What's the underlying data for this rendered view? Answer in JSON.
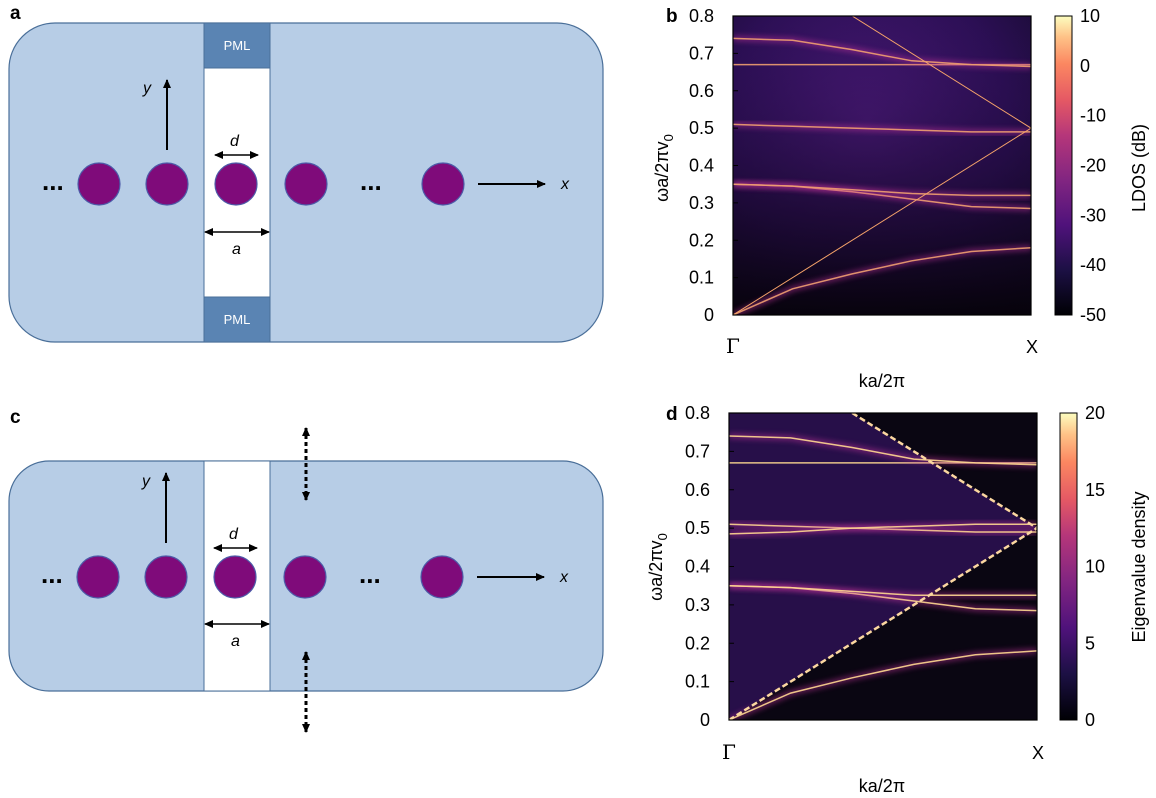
{
  "panels": {
    "a": {
      "letter": "a",
      "pml_top": "PML",
      "pml_bottom": "PML",
      "y_label": "y",
      "x_label": "x",
      "d_label": "d",
      "a_label": "a",
      "dots_left": "...",
      "dots_mid": "..."
    },
    "b": {
      "letter": "b",
      "ylabel": "ωa/2πv",
      "ylabel_sub": "0",
      "xlabel": "ka/2π",
      "xticks": [
        "Γ",
        "X"
      ],
      "yticks": [
        "0",
        "0.1",
        "0.2",
        "0.3",
        "0.4",
        "0.5",
        "0.6",
        "0.7",
        "0.8"
      ],
      "colorbar_label": "LDOS (dB)",
      "colorbar_ticks": [
        "10",
        "0",
        "-10",
        "-20",
        "-30",
        "-40",
        "-50"
      ]
    },
    "c": {
      "letter": "c",
      "y_label": "y",
      "x_label": "x",
      "d_label": "d",
      "a_label": "a",
      "dots_left": "...",
      "dots_mid": "..."
    },
    "d": {
      "letter": "d",
      "ylabel": "ωa/2πv",
      "ylabel_sub": "0",
      "xlabel": "ka/2π",
      "xticks": [
        "Γ",
        "X"
      ],
      "yticks": [
        "0",
        "0.1",
        "0.2",
        "0.3",
        "0.4",
        "0.5",
        "0.6",
        "0.7",
        "0.8"
      ],
      "colorbar_label": "Eigenvalue density",
      "colorbar_ticks": [
        "20",
        "15",
        "10",
        "5",
        "0"
      ]
    }
  },
  "chart_data": [
    {
      "type": "heatmap",
      "title": "",
      "xlabel": "ka/2π",
      "ylabel": "ωa/2πv0",
      "xlim": [
        0,
        0.5
      ],
      "ylim": [
        0,
        0.8
      ],
      "x_tick_labels": [
        "Γ",
        "X"
      ],
      "colorbar": {
        "label": "LDOS (dB)",
        "range": [
          -50,
          10
        ]
      },
      "bands": [
        {
          "x": [
            0,
            0.1,
            0.2,
            0.3,
            0.4,
            0.5
          ],
          "y": [
            0.0,
            0.07,
            0.11,
            0.145,
            0.17,
            0.18
          ]
        },
        {
          "x": [
            0,
            0.1,
            0.2,
            0.3,
            0.4,
            0.5
          ],
          "y": [
            0.35,
            0.345,
            0.33,
            0.31,
            0.29,
            0.285
          ]
        },
        {
          "x": [
            0,
            0.1,
            0.2,
            0.3,
            0.4,
            0.5
          ],
          "y": [
            0.35,
            0.345,
            0.335,
            0.325,
            0.32,
            0.32
          ]
        },
        {
          "x": [
            0,
            0.1,
            0.2,
            0.3,
            0.4,
            0.5
          ],
          "y": [
            0.51,
            0.505,
            0.5,
            0.495,
            0.49,
            0.49
          ]
        },
        {
          "x": [
            0,
            0.1,
            0.2,
            0.3,
            0.4,
            0.5
          ],
          "y": [
            0.67,
            0.67,
            0.67,
            0.67,
            0.67,
            0.67
          ]
        },
        {
          "x": [
            0,
            0.1,
            0.2,
            0.3,
            0.4,
            0.5
          ],
          "y": [
            0.74,
            0.735,
            0.71,
            0.68,
            0.67,
            0.665
          ]
        }
      ],
      "light_lines": [
        {
          "x": [
            0,
            0.5
          ],
          "y": [
            0,
            0.5
          ]
        },
        {
          "x": [
            0.2,
            0.5
          ],
          "y": [
            0.8,
            0.5
          ]
        }
      ]
    },
    {
      "type": "heatmap",
      "title": "",
      "xlabel": "ka/2π",
      "ylabel": "ωa/2πv0",
      "xlim": [
        0,
        0.5
      ],
      "ylim": [
        0,
        0.8
      ],
      "x_tick_labels": [
        "Γ",
        "X"
      ],
      "colorbar": {
        "label": "Eigenvalue density",
        "range": [
          0,
          20
        ]
      },
      "bands": [
        {
          "x": [
            0,
            0.1,
            0.2,
            0.3,
            0.4,
            0.5
          ],
          "y": [
            0.0,
            0.07,
            0.11,
            0.145,
            0.17,
            0.18
          ]
        },
        {
          "x": [
            0,
            0.1,
            0.2,
            0.3,
            0.4,
            0.5
          ],
          "y": [
            0.35,
            0.345,
            0.33,
            0.31,
            0.29,
            0.285
          ]
        },
        {
          "x": [
            0,
            0.1,
            0.2,
            0.3,
            0.4,
            0.5
          ],
          "y": [
            0.35,
            0.345,
            0.335,
            0.325,
            0.325,
            0.325
          ]
        },
        {
          "x": [
            0,
            0.1,
            0.2,
            0.3,
            0.4,
            0.5
          ],
          "y": [
            0.51,
            0.505,
            0.5,
            0.495,
            0.49,
            0.49
          ]
        },
        {
          "x": [
            0,
            0.1,
            0.2,
            0.3,
            0.4,
            0.5
          ],
          "y": [
            0.485,
            0.49,
            0.5,
            0.505,
            0.51,
            0.51
          ]
        },
        {
          "x": [
            0,
            0.1,
            0.2,
            0.3,
            0.4,
            0.5
          ],
          "y": [
            0.67,
            0.67,
            0.67,
            0.67,
            0.67,
            0.67
          ]
        },
        {
          "x": [
            0,
            0.1,
            0.2,
            0.3,
            0.4,
            0.5
          ],
          "y": [
            0.74,
            0.735,
            0.71,
            0.68,
            0.67,
            0.665
          ]
        }
      ],
      "light_lines": [
        {
          "x": [
            0,
            0.5
          ],
          "y": [
            0,
            0.5
          ]
        },
        {
          "x": [
            0.2,
            0.5
          ],
          "y": [
            0.8,
            0.5
          ]
        }
      ]
    }
  ],
  "colors": {
    "domain_fill": "#b7cde6",
    "domain_stroke": "#4a6f99",
    "pml_fill": "#5a84b3",
    "rod_fill": "#7f0b7a",
    "rod_stroke": "#4d5aa8",
    "plot_bg": "#160d2b"
  }
}
